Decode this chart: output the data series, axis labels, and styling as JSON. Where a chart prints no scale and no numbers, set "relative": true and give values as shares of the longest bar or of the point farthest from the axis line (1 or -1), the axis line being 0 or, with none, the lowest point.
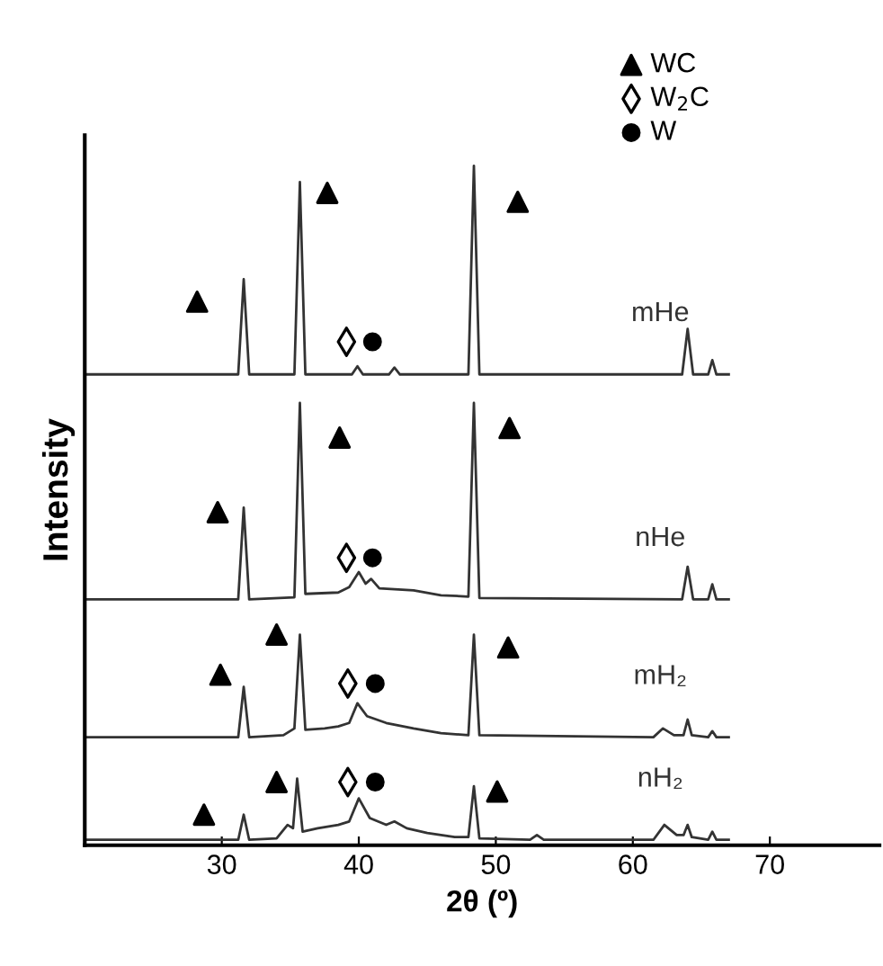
{
  "chart_data": {
    "type": "line",
    "relative": true,
    "xlabel": "2θ (º)",
    "ylabel": "Intensity",
    "xlim": [
      20,
      78
    ],
    "xticks": [
      30,
      40,
      50,
      60,
      70
    ],
    "grid": false,
    "legend": "top right",
    "marker": "none",
    "line_style": "solid",
    "series": [
      {
        "name": "mHe",
        "color": "#333333",
        "x": [
          20,
          31.2,
          31.6,
          32.0,
          35.3,
          35.7,
          36.1,
          39.5,
          39.9,
          40.3,
          42.2,
          42.6,
          43.0,
          48.0,
          48.4,
          48.8,
          63.6,
          64.0,
          64.4,
          65.5,
          65.8,
          66.1,
          67
        ],
        "values": [
          0.693,
          0.693,
          0.833,
          0.693,
          0.693,
          0.976,
          0.693,
          0.693,
          0.705,
          0.693,
          0.693,
          0.703,
          0.693,
          0.693,
          1.0,
          0.693,
          0.693,
          0.76,
          0.693,
          0.693,
          0.714,
          0.693,
          0.693
        ]
      },
      {
        "name": "nHe",
        "color": "#333333",
        "x": [
          20,
          31.2,
          31.6,
          32.0,
          35.3,
          35.7,
          36.1,
          38.5,
          39.3,
          40.0,
          40.5,
          40.9,
          41.5,
          44,
          46,
          48.0,
          48.4,
          48.8,
          63.6,
          64.0,
          64.4,
          65.5,
          65.8,
          66.1,
          67
        ],
        "values": [
          0.362,
          0.362,
          0.497,
          0.362,
          0.365,
          0.651,
          0.37,
          0.372,
          0.38,
          0.402,
          0.385,
          0.392,
          0.378,
          0.375,
          0.368,
          0.366,
          0.651,
          0.364,
          0.362,
          0.41,
          0.362,
          0.362,
          0.384,
          0.362,
          0.362
        ]
      },
      {
        "name": "mH₂",
        "color": "#333333",
        "x": [
          20,
          31.2,
          31.6,
          32.0,
          34.5,
          35.3,
          35.7,
          36.1,
          37.5,
          38.5,
          39.3,
          39.9,
          40.6,
          42,
          44,
          46,
          48.0,
          48.4,
          48.8,
          61.5,
          62.2,
          63,
          63.7,
          64.0,
          64.3,
          65.5,
          65.8,
          66.1,
          67
        ],
        "values": [
          0.159,
          0.159,
          0.233,
          0.159,
          0.162,
          0.172,
          0.31,
          0.17,
          0.172,
          0.175,
          0.18,
          0.209,
          0.19,
          0.18,
          0.172,
          0.165,
          0.162,
          0.31,
          0.162,
          0.159,
          0.172,
          0.162,
          0.162,
          0.185,
          0.162,
          0.159,
          0.168,
          0.159,
          0.159
        ]
      },
      {
        "name": "nH₂",
        "color": "#333333",
        "x": [
          20,
          31.2,
          31.6,
          32.0,
          34,
          34.8,
          35.2,
          35.5,
          35.9,
          37,
          38.5,
          39.3,
          40.0,
          40.8,
          42,
          42.6,
          43.5,
          45,
          47,
          48.0,
          48.4,
          48.8,
          52.5,
          53,
          53.5,
          61.5,
          62.3,
          63.2,
          63.7,
          64.0,
          64.3,
          65.5,
          65.8,
          66.1,
          67
        ],
        "values": [
          0.008,
          0.008,
          0.045,
          0.008,
          0.01,
          0.03,
          0.025,
          0.098,
          0.02,
          0.025,
          0.03,
          0.035,
          0.069,
          0.04,
          0.03,
          0.035,
          0.025,
          0.018,
          0.012,
          0.012,
          0.087,
          0.01,
          0.008,
          0.015,
          0.008,
          0.008,
          0.03,
          0.015,
          0.015,
          0.03,
          0.012,
          0.008,
          0.02,
          0.008,
          0.008
        ]
      },
      {
        "name": "WC",
        "type": "scatter",
        "marker": "triangle",
        "color": "#000000",
        "x": [
          28.2,
          37.7,
          51.6,
          29.7,
          38.6,
          51.0,
          29.9,
          34.0,
          50.9,
          28.7,
          34.0,
          50.1
        ],
        "values": [
          0.8,
          0.96,
          0.947,
          0.49,
          0.6,
          0.614,
          0.251,
          0.31,
          0.291,
          0.045,
          0.093,
          0.079
        ]
      },
      {
        "name": "W$_{2}$C",
        "type": "scatter",
        "marker": "diamond",
        "color": "#000000",
        "x": [
          39.1,
          39.1,
          39.2,
          39.2
        ],
        "values": [
          0.741,
          0.423,
          0.238,
          0.093
        ]
      },
      {
        "name": "W",
        "type": "scatter",
        "marker": "circle",
        "color": "#000000",
        "x": [
          41.0,
          41.0,
          41.2,
          41.2
        ],
        "values": [
          0.741,
          0.423,
          0.238,
          0.093
        ]
      }
    ]
  }
}
